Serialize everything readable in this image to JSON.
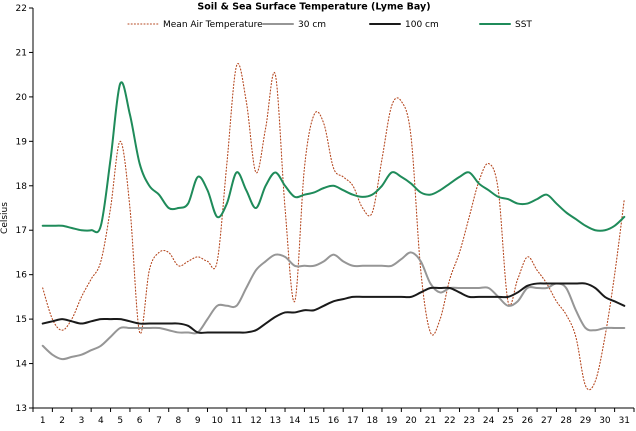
{
  "chart_data": {
    "type": "line",
    "title": "Soil & Sea Surface Temperature (Lyme Bay)",
    "xlabel": "",
    "ylabel": "Celsius",
    "ylim": [
      13,
      22
    ],
    "yticks": [
      13,
      14,
      15,
      16,
      17,
      18,
      19,
      20,
      21,
      22
    ],
    "x_tick_labels": [
      "1",
      "2",
      "3",
      "4",
      "5",
      "6",
      "7",
      "8",
      "9",
      "10",
      "11",
      "12",
      "13",
      "14",
      "15",
      "16",
      "17",
      "18",
      "19",
      "20",
      "21",
      "22",
      "23",
      "24",
      "25",
      "26",
      "27",
      "28",
      "29",
      "30",
      "31"
    ],
    "legend": "top",
    "grid": false,
    "series": [
      {
        "name": "Mean Air Temperature",
        "color": "#b5471f",
        "style": "dotted",
        "x": [
          1,
          1.5,
          2,
          2.5,
          3,
          3.5,
          4,
          4.5,
          5,
          5.5,
          6,
          6.5,
          7,
          7.5,
          8,
          8.5,
          9,
          9.5,
          10,
          10.5,
          11,
          11.5,
          12,
          12.5,
          13,
          13.5,
          14,
          14.5,
          15,
          15.5,
          16,
          16.5,
          17,
          17.5,
          18,
          18.5,
          19,
          19.5,
          20,
          20.5,
          21,
          21.5,
          22,
          22.5,
          23,
          23.5,
          24,
          24.5,
          25,
          25.5,
          26,
          26.5,
          27,
          27.5,
          28,
          28.5,
          29,
          29.5,
          30,
          30.5,
          31
        ],
        "values": [
          15.7,
          15.0,
          14.75,
          15.0,
          15.5,
          15.9,
          16.3,
          17.5,
          19.0,
          17.5,
          14.7,
          16.1,
          16.5,
          16.5,
          16.2,
          16.3,
          16.4,
          16.3,
          16.3,
          18.5,
          20.7,
          19.9,
          18.3,
          19.3,
          20.5,
          17.5,
          15.4,
          18.4,
          19.6,
          19.4,
          18.4,
          18.2,
          18.0,
          17.5,
          17.4,
          18.6,
          19.8,
          19.9,
          19.1,
          16.1,
          14.7,
          15.0,
          15.9,
          16.5,
          17.3,
          18.1,
          18.5,
          17.9,
          15.4,
          15.9,
          16.4,
          16.1,
          15.8,
          15.4,
          15.1,
          14.6,
          13.5,
          13.6,
          14.6,
          16.0,
          17.7
        ]
      },
      {
        "name": "30 cm",
        "color": "#969696",
        "style": "solid",
        "x": [
          1,
          1.5,
          2,
          2.5,
          3,
          3.5,
          4,
          4.5,
          5,
          5.5,
          6,
          6.5,
          7,
          7.5,
          8,
          8.5,
          9,
          9.5,
          10,
          10.5,
          11,
          11.5,
          12,
          12.5,
          13,
          13.5,
          14,
          14.5,
          15,
          15.5,
          16,
          16.5,
          17,
          17.5,
          18,
          18.5,
          19,
          19.5,
          20,
          20.5,
          21,
          21.5,
          22,
          22.5,
          23,
          23.5,
          24,
          24.5,
          25,
          25.5,
          26,
          26.5,
          27,
          27.5,
          28,
          28.5,
          29,
          29.5,
          30,
          30.5,
          31
        ],
        "values": [
          14.4,
          14.2,
          14.1,
          14.15,
          14.2,
          14.3,
          14.4,
          14.6,
          14.8,
          14.8,
          14.8,
          14.8,
          14.8,
          14.75,
          14.7,
          14.7,
          14.7,
          15.0,
          15.3,
          15.3,
          15.3,
          15.7,
          16.1,
          16.3,
          16.45,
          16.4,
          16.2,
          16.2,
          16.2,
          16.3,
          16.45,
          16.3,
          16.2,
          16.2,
          16.2,
          16.2,
          16.2,
          16.35,
          16.5,
          16.3,
          15.8,
          15.6,
          15.7,
          15.7,
          15.7,
          15.7,
          15.7,
          15.5,
          15.3,
          15.4,
          15.7,
          15.7,
          15.7,
          15.8,
          15.7,
          15.2,
          14.8,
          14.75,
          14.8,
          14.8,
          14.8
        ]
      },
      {
        "name": "100 cm",
        "color": "#1a1a1a",
        "style": "solid",
        "x": [
          1,
          1.5,
          2,
          2.5,
          3,
          3.5,
          4,
          4.5,
          5,
          5.5,
          6,
          6.5,
          7,
          7.5,
          8,
          8.5,
          9,
          9.5,
          10,
          10.5,
          11,
          11.5,
          12,
          12.5,
          13,
          13.5,
          14,
          14.5,
          15,
          15.5,
          16,
          16.5,
          17,
          17.5,
          18,
          18.5,
          19,
          19.5,
          20,
          20.5,
          21,
          21.5,
          22,
          22.5,
          23,
          23.5,
          24,
          24.5,
          25,
          25.5,
          26,
          26.5,
          27,
          27.5,
          28,
          28.5,
          29,
          29.5,
          30,
          30.5,
          31
        ],
        "values": [
          14.9,
          14.95,
          15.0,
          14.95,
          14.9,
          14.95,
          15.0,
          15.0,
          15.0,
          14.95,
          14.9,
          14.9,
          14.9,
          14.9,
          14.9,
          14.85,
          14.7,
          14.7,
          14.7,
          14.7,
          14.7,
          14.7,
          14.75,
          14.9,
          15.05,
          15.15,
          15.15,
          15.2,
          15.2,
          15.3,
          15.4,
          15.45,
          15.5,
          15.5,
          15.5,
          15.5,
          15.5,
          15.5,
          15.5,
          15.6,
          15.7,
          15.7,
          15.7,
          15.6,
          15.5,
          15.5,
          15.5,
          15.5,
          15.5,
          15.6,
          15.75,
          15.8,
          15.8,
          15.8,
          15.8,
          15.8,
          15.8,
          15.7,
          15.5,
          15.4,
          15.3
        ]
      },
      {
        "name": "SST",
        "color": "#1f8b5a",
        "style": "solid",
        "x": [
          1,
          1.5,
          2,
          2.5,
          3,
          3.5,
          4,
          4.5,
          5,
          5.5,
          6,
          6.5,
          7,
          7.5,
          8,
          8.5,
          9,
          9.5,
          10,
          10.5,
          11,
          11.5,
          12,
          12.5,
          13,
          13.5,
          14,
          14.5,
          15,
          15.5,
          16,
          16.5,
          17,
          17.5,
          18,
          18.5,
          19,
          19.5,
          20,
          20.5,
          21,
          21.5,
          22,
          22.5,
          23,
          23.5,
          24,
          24.5,
          25,
          25.5,
          26,
          26.5,
          27,
          27.5,
          28,
          28.5,
          29,
          29.5,
          30,
          30.5,
          31
        ],
        "values": [
          17.1,
          17.1,
          17.1,
          17.05,
          17.0,
          17.0,
          17.1,
          18.6,
          20.3,
          19.6,
          18.5,
          18.0,
          17.8,
          17.5,
          17.5,
          17.6,
          18.2,
          17.9,
          17.3,
          17.6,
          18.3,
          17.9,
          17.5,
          18.0,
          18.3,
          18.0,
          17.75,
          17.8,
          17.85,
          17.95,
          18.0,
          17.9,
          17.8,
          17.75,
          17.8,
          18.0,
          18.3,
          18.2,
          18.05,
          17.85,
          17.8,
          17.9,
          18.05,
          18.2,
          18.3,
          18.05,
          17.9,
          17.75,
          17.7,
          17.6,
          17.6,
          17.7,
          17.8,
          17.6,
          17.4,
          17.25,
          17.1,
          17.0,
          17.0,
          17.1,
          17.3
        ]
      }
    ]
  }
}
